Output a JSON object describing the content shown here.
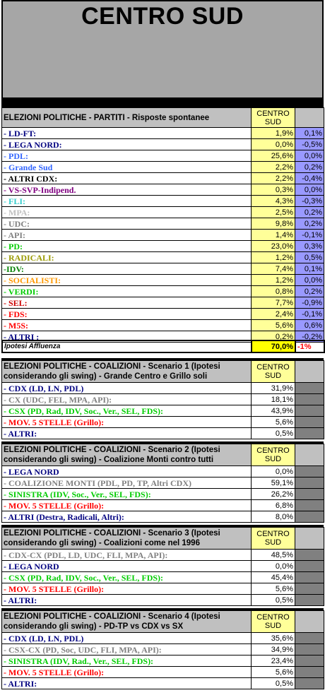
{
  "title": "CENTRO SUD",
  "colors": {
    "header_grey": "#c0c0c0",
    "yellow": "#ffff99",
    "violet": "#9999ff",
    "dark_grey": "#808080"
  },
  "parties": {
    "header": "ELEZIONI POLITICHE - PARTITI - Risposte spontanee",
    "col_header": "CENTRO SUD",
    "rows": [
      {
        "label": "- LD-FT:",
        "value": "1,9%",
        "delta": "0,1%",
        "color": "#000080"
      },
      {
        "label": "- LEGA NORD:",
        "value": "0,0%",
        "delta": "-0,5%",
        "color": "#000080"
      },
      {
        "label": "- PDL:",
        "value": "25,6%",
        "delta": "0,0%",
        "color": "#3366ff"
      },
      {
        "label": "- Grande Sud",
        "value": "2,2%",
        "delta": "0,2%",
        "color": "#3366ff"
      },
      {
        "label": "- ALTRI CDX:",
        "value": "2,2%",
        "delta": "-0,4%",
        "color": "#000000"
      },
      {
        "label": "- VS-SVP-Indipend.",
        "value": "0,3%",
        "delta": "0,0%",
        "color": "#800080"
      },
      {
        "label": "- FLI:",
        "value": "4,3%",
        "delta": "-0,3%",
        "color": "#33cccc"
      },
      {
        "label": "- MPA:",
        "value": "2,5%",
        "delta": "0,2%",
        "color": "#c0c0c0"
      },
      {
        "label": "- UDC:",
        "value": "9,8%",
        "delta": "0,2%",
        "color": "#808080"
      },
      {
        "label": "- API:",
        "value": "1,4%",
        "delta": "-0,1%",
        "color": "#808080"
      },
      {
        "label": "- PD:",
        "value": "23,0%",
        "delta": "0,3%",
        "color": "#00cc00"
      },
      {
        "label": "- RADICALI:",
        "value": "1,2%",
        "delta": "0,5%",
        "color": "#999900"
      },
      {
        "label": "-IDV:",
        "value": "7,4%",
        "delta": "0,1%",
        "color": "#008000"
      },
      {
        "label": "- SOCIALISTI:",
        "value": "1,2%",
        "delta": "0,0%",
        "color": "#ff9900"
      },
      {
        "label": "- VERDI:",
        "value": "0,8%",
        "delta": "0,2%",
        "color": "#00cc00"
      },
      {
        "label": "- SEL:",
        "value": "7,7%",
        "delta": "-0,9%",
        "color": "#cc0000"
      },
      {
        "label": "- FDS:",
        "value": "2,4%",
        "delta": "-0,1%",
        "color": "#ff0000"
      },
      {
        "label": "- M5S:",
        "value": "5,6%",
        "delta": "0,6%",
        "color": "#ff0000"
      },
      {
        "label": "- ALTRI :",
        "value": "0,2%",
        "delta": "-0,2%",
        "color": "#000080"
      }
    ]
  },
  "affluenza": {
    "label": "Ipotesi Affluenza",
    "value": "70,0%",
    "delta": "-1%"
  },
  "scenarios": [
    {
      "header": "ELEZIONI POLITICHE - COALIZIONI - Scenario 1 (Ipotesi considerando gli swing) - Grande Centro e Grillo soli",
      "col_header": "CENTRO SUD",
      "rows": [
        {
          "label": "- CDX (LD, LN, PDL)",
          "value": "31,9%",
          "color": "#000080"
        },
        {
          "label": "- CX (UDC, FEL, MPA, API):",
          "value": "18,1%",
          "color": "#808080"
        },
        {
          "label": "- CSX (PD, Rad, IDV, Soc., Ver., SEL, FDS):",
          "value": "43,9%",
          "color": "#00cc00"
        },
        {
          "label": "- MOV. 5 STELLE (Grillo):",
          "value": "5,6%",
          "color": "#ff0000"
        },
        {
          "label": "- ALTRI:",
          "value": "0,5%",
          "color": "#000080"
        }
      ]
    },
    {
      "header": "ELEZIONI POLITICHE - COALIZIONI - Scenario 2 (Ipotesi considerando gli swing) - Coalizione Monti contro tutti",
      "col_header": "CENTRO SUD",
      "rows": [
        {
          "label": "- LEGA NORD",
          "value": "0,0%",
          "color": "#000080"
        },
        {
          "label": "- COALIZIONE MONTI (PDL, PD, TP, Altri CDX)",
          "value": "59,1%",
          "color": "#808080"
        },
        {
          "label": "- SINISTRA (IDV, Soc., Ver., SEL, FDS):",
          "value": "26,2%",
          "color": "#00cc00"
        },
        {
          "label": "- MOV. 5 STELLE (Grillo):",
          "value": "6,8%",
          "color": "#ff0000"
        },
        {
          "label": "- ALTRI (Destra, Radicali, Altri):",
          "value": "8,0%",
          "color": "#000080"
        }
      ]
    },
    {
      "header": "ELEZIONI POLITICHE - COALIZIONI - Scenario 3 (Ipotesi considerando gli swing) - Coalizioni come nel 1996",
      "col_header": "CENTRO SUD",
      "rows": [
        {
          "label": "- CDX-CX (PDL, LD, UDC, FLI, MPA, API):",
          "value": "48,5%",
          "color": "#808080"
        },
        {
          "label": "- LEGA NORD",
          "value": "0,0%",
          "color": "#000080"
        },
        {
          "label": "- CSX (PD, Rad, IDV, Soc., Ver., SEL, FDS):",
          "value": "45,4%",
          "color": "#00cc00"
        },
        {
          "label": "- MOV. 5 STELLE (Grillo):",
          "value": "5,6%",
          "color": "#ff0000"
        },
        {
          "label": "- ALTRI:",
          "value": "0,5%",
          "color": "#000080"
        }
      ]
    },
    {
      "header": "ELEZIONI POLITICHE - COALIZIONI - Scenario 4 (Ipotesi considerando gli swing) - PD-TP  vs  CDX  vs SX",
      "col_header": "CENTRO SUD",
      "rows": [
        {
          "label": "- CDX (LD, LN, PDL)",
          "value": "35,6%",
          "color": "#000080"
        },
        {
          "label": "- CSX-CX (PD, Soc, UDC, FLI, MPA, API):",
          "value": "34,9%",
          "color": "#808080"
        },
        {
          "label": "- SINISTRA (IDV, Rad., Ver., SEL, FDS):",
          "value": "23,4%",
          "color": "#00cc00"
        },
        {
          "label": "- MOV. 5 STELLE (Grillo):",
          "value": "5,6%",
          "color": "#ff0000"
        },
        {
          "label": "- ALTRI:",
          "value": "0,5%",
          "color": "#000080"
        }
      ]
    }
  ]
}
